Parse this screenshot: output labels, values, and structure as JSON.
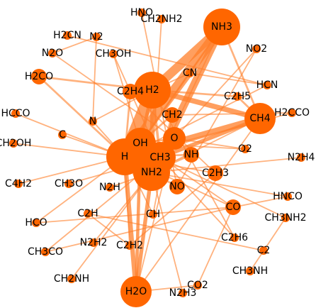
{
  "graph": {
    "node_color": "#ff6600",
    "edge_color": "#ff7f2a",
    "label_color": "#000000",
    "nodes": [
      {
        "id": "HNO",
        "weight": 2
      },
      {
        "id": "CH2NH2",
        "weight": 2
      },
      {
        "id": "NH3",
        "weight": 10
      },
      {
        "id": "H2CN",
        "weight": 2
      },
      {
        "id": "N2",
        "weight": 2
      },
      {
        "id": "N2O",
        "weight": 2
      },
      {
        "id": "CH3OH",
        "weight": 2
      },
      {
        "id": "NO2",
        "weight": 2
      },
      {
        "id": "H2CO",
        "weight": 3
      },
      {
        "id": "CN",
        "weight": 2
      },
      {
        "id": "H2",
        "weight": 10
      },
      {
        "id": "C2H4",
        "weight": 3
      },
      {
        "id": "HCN",
        "weight": 2
      },
      {
        "id": "C2H5",
        "weight": 2
      },
      {
        "id": "HCCO",
        "weight": 2
      },
      {
        "id": "CH2",
        "weight": 3
      },
      {
        "id": "H2CCO",
        "weight": 2
      },
      {
        "id": "CH4",
        "weight": 8
      },
      {
        "id": "N",
        "weight": 2
      },
      {
        "id": "C",
        "weight": 2
      },
      {
        "id": "OH",
        "weight": 6
      },
      {
        "id": "O",
        "weight": 5
      },
      {
        "id": "CH2OH",
        "weight": 2
      },
      {
        "id": "O2",
        "weight": 2
      },
      {
        "id": "H",
        "weight": 10
      },
      {
        "id": "CH3",
        "weight": 6
      },
      {
        "id": "NH",
        "weight": 3
      },
      {
        "id": "N2H4",
        "weight": 2
      },
      {
        "id": "NH2",
        "weight": 10
      },
      {
        "id": "C2H3",
        "weight": 3
      },
      {
        "id": "C4H2",
        "weight": 2
      },
      {
        "id": "CH3O",
        "weight": 2
      },
      {
        "id": "N2H",
        "weight": 2
      },
      {
        "id": "NO",
        "weight": 3
      },
      {
        "id": "HNCO",
        "weight": 2
      },
      {
        "id": "CO",
        "weight": 3
      },
      {
        "id": "C2H",
        "weight": 2
      },
      {
        "id": "CH",
        "weight": 2
      },
      {
        "id": "HCO",
        "weight": 2
      },
      {
        "id": "CH3NH2",
        "weight": 2
      },
      {
        "id": "N2H2",
        "weight": 2
      },
      {
        "id": "C2H2",
        "weight": 2
      },
      {
        "id": "C2H6",
        "weight": 2
      },
      {
        "id": "CH3CO",
        "weight": 2
      },
      {
        "id": "C2",
        "weight": 2
      },
      {
        "id": "CH3NH",
        "weight": 2
      },
      {
        "id": "CH2NH",
        "weight": 2
      },
      {
        "id": "CO2",
        "weight": 2
      },
      {
        "id": "H2O",
        "weight": 6
      },
      {
        "id": "N2H3",
        "weight": 2
      }
    ],
    "edges": [
      [
        "H",
        "H2",
        20
      ],
      [
        "H",
        "NH3",
        16
      ],
      [
        "H2",
        "NH3",
        14
      ],
      [
        "NH2",
        "NH3",
        12
      ],
      [
        "H",
        "NH2",
        14
      ],
      [
        "H",
        "OH",
        8
      ],
      [
        "H",
        "CH4",
        10
      ],
      [
        "H2",
        "CH4",
        8
      ],
      [
        "H",
        "CH3",
        8
      ],
      [
        "CH3",
        "CH4",
        6
      ],
      [
        "H",
        "H2O",
        7
      ],
      [
        "NH2",
        "H2O",
        6
      ],
      [
        "OH",
        "H2O",
        5
      ],
      [
        "H2",
        "OH",
        5
      ],
      [
        "H2",
        "H2CO",
        3
      ],
      [
        "H",
        "H2CO",
        3
      ],
      [
        "H2",
        "C2H4",
        4
      ],
      [
        "H",
        "C2H4",
        3
      ],
      [
        "H2",
        "C2H5",
        3
      ],
      [
        "C2H5",
        "CH4",
        3
      ],
      [
        "H",
        "CH2",
        3
      ],
      [
        "CH2",
        "CH3",
        3
      ],
      [
        "H",
        "O",
        3
      ],
      [
        "O",
        "OH",
        3
      ],
      [
        "NH",
        "NH2",
        3
      ],
      [
        "H",
        "NH",
        3
      ],
      [
        "NO",
        "NH2",
        3
      ],
      [
        "NH2",
        "O",
        3
      ],
      [
        "H",
        "N",
        2
      ],
      [
        "N",
        "H2",
        2
      ],
      [
        "NH3",
        "CH3",
        2
      ],
      [
        "CN",
        "H2",
        2
      ],
      [
        "HCN",
        "CN",
        2
      ],
      [
        "HCN",
        "H",
        2
      ],
      [
        "CO",
        "H",
        2
      ],
      [
        "CO",
        "OH",
        2
      ],
      [
        "CO",
        "CO2",
        2
      ],
      [
        "CO2",
        "H2O",
        2
      ],
      [
        "HCO",
        "H",
        2
      ],
      [
        "HCO",
        "CO",
        2
      ],
      [
        "C2H3",
        "H",
        2
      ],
      [
        "C2H3",
        "C2H4",
        2
      ],
      [
        "C2H6",
        "CH3",
        2
      ],
      [
        "C2H6",
        "H2",
        2
      ],
      [
        "CH",
        "CH2",
        2
      ],
      [
        "CH",
        "H",
        2
      ],
      [
        "C2H2",
        "C2H3",
        2
      ],
      [
        "C2H2",
        "H",
        2
      ],
      [
        "N2H",
        "NH2",
        2
      ],
      [
        "N2H2",
        "NH2",
        2
      ],
      [
        "N2H3",
        "NH2",
        2
      ],
      [
        "N2H4",
        "NH2",
        2
      ],
      [
        "HNCO",
        "NH2",
        2
      ],
      [
        "HNCO",
        "CO",
        2
      ],
      [
        "CH3NH2",
        "CH3",
        2
      ],
      [
        "CH3NH",
        "CH3NH2",
        2
      ],
      [
        "CH2NH",
        "NH2",
        2
      ],
      [
        "CH2NH2",
        "NH2",
        2
      ],
      [
        "CH3OH",
        "CH3",
        2
      ],
      [
        "CH3OH",
        "OH",
        2
      ],
      [
        "CH3O",
        "CH3",
        2
      ],
      [
        "CH2OH",
        "H",
        2
      ],
      [
        "HCCO",
        "H",
        2
      ],
      [
        "H2CCO",
        "CH2",
        2
      ],
      [
        "H2CCO",
        "H",
        2
      ],
      [
        "C4H2",
        "H",
        2
      ],
      [
        "C2H",
        "C2H2",
        2
      ],
      [
        "C2",
        "C2H",
        2
      ],
      [
        "C",
        "H",
        2
      ],
      [
        "HNO",
        "NO",
        2
      ],
      [
        "NO2",
        "NO",
        2
      ],
      [
        "NO2",
        "O",
        2
      ],
      [
        "N2O",
        "N2",
        2
      ],
      [
        "N2O",
        "O",
        2
      ],
      [
        "N2",
        "N",
        2
      ],
      [
        "H2CN",
        "HCN",
        2
      ],
      [
        "O2",
        "O",
        2
      ],
      [
        "O2",
        "OH",
        2
      ],
      [
        "CH3CO",
        "CH3",
        2
      ],
      [
        "CH3CO",
        "CO",
        2
      ],
      [
        "H2O",
        "O",
        2
      ],
      [
        "H2O",
        "CH4",
        2
      ],
      [
        "NH3",
        "CH4",
        3
      ],
      [
        "NH3",
        "OH",
        3
      ],
      [
        "H2",
        "NH2",
        6
      ],
      [
        "H2",
        "CH3",
        4
      ],
      [
        "OH",
        "NH3",
        2
      ],
      [
        "CH4",
        "NH2",
        2
      ]
    ]
  }
}
